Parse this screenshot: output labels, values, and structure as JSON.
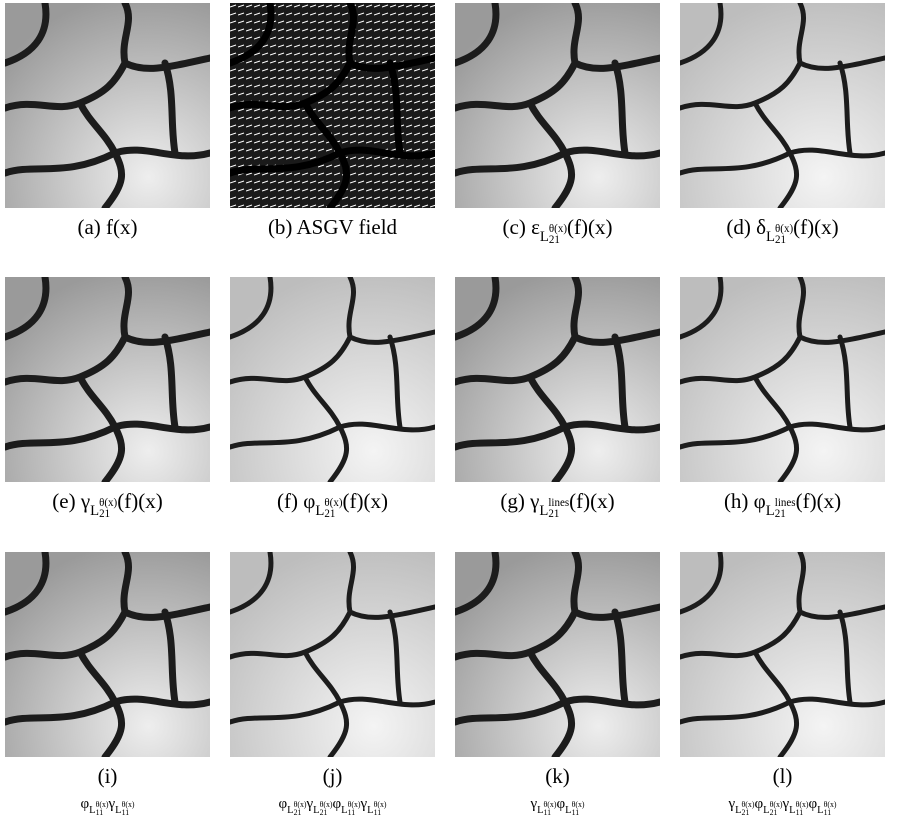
{
  "panels": [
    {
      "caption": [
        {
          "t": "(a) f(x)"
        }
      ]
    },
    {
      "caption": [
        {
          "t": "(b) ASGV field"
        }
      ]
    },
    {
      "caption": [
        {
          "t": "(c) ε"
        },
        {
          "sub": "L",
          "sup2": "θ(x)",
          "sub2": "21"
        },
        {
          "t": "(f)(x)"
        }
      ]
    },
    {
      "caption": [
        {
          "t": "(d) δ"
        },
        {
          "sub": "L",
          "sup2": "θ(x)",
          "sub2": "21"
        },
        {
          "t": "(f)(x)"
        }
      ]
    },
    {
      "caption": [
        {
          "t": "(e) γ"
        },
        {
          "sub": "L",
          "sup2": "θ(x)",
          "sub2": "21"
        },
        {
          "t": "(f)(x)"
        }
      ]
    },
    {
      "caption": [
        {
          "t": "(f) φ"
        },
        {
          "sub": "L",
          "sup2": "θ(x)",
          "sub2": "21"
        },
        {
          "t": "(f)(x)"
        }
      ]
    },
    {
      "caption": [
        {
          "t": "(g) γ"
        },
        {
          "sub": "L",
          "sup2": "lines",
          "sub2": "21"
        },
        {
          "t": "(f)(x)"
        }
      ]
    },
    {
      "caption": [
        {
          "t": "(h) φ"
        },
        {
          "sub": "L",
          "sup2": "lines",
          "sub2": "21"
        },
        {
          "t": "(f)(x)"
        }
      ]
    },
    {
      "caption": [
        {
          "t": "(i)"
        }
      ],
      "formula": [
        {
          "t": "φ"
        },
        {
          "sub": "L",
          "sup2": "θ(x)",
          "sub2": "11"
        },
        {
          "t": "γ"
        },
        {
          "sub": "L",
          "sup2": "θ(x)",
          "sub2": "11"
        }
      ]
    },
    {
      "caption": [
        {
          "t": "(j)"
        }
      ],
      "formula": [
        {
          "t": "φ"
        },
        {
          "sub": "L",
          "sup2": "θ(x)",
          "sub2": "21"
        },
        {
          "t": "γ"
        },
        {
          "sub": "L",
          "sup2": "θ(x)",
          "sub2": "21"
        },
        {
          "t": "φ"
        },
        {
          "sub": "L",
          "sup2": "θ(x)",
          "sub2": "11"
        },
        {
          "t": "γ"
        },
        {
          "sub": "L",
          "sup2": "θ(x)",
          "sub2": "11"
        }
      ]
    },
    {
      "caption": [
        {
          "t": "(k)"
        }
      ],
      "formula": [
        {
          "t": "γ"
        },
        {
          "sub": "L",
          "sup2": "θ(x)",
          "sub2": "11"
        },
        {
          "t": "φ"
        },
        {
          "sub": "L",
          "sup2": "θ(x)",
          "sub2": "11"
        }
      ]
    },
    {
      "caption": [
        {
          "t": "(l)"
        }
      ],
      "formula": [
        {
          "t": "γ"
        },
        {
          "sub": "L",
          "sup2": "θ(x)",
          "sub2": "21"
        },
        {
          "t": "φ"
        },
        {
          "sub": "L",
          "sup2": "θ(x)",
          "sub2": "21"
        },
        {
          "t": "γ"
        },
        {
          "sub": "L",
          "sup2": "θ(x)",
          "sub2": "11"
        },
        {
          "t": "φ"
        },
        {
          "sub": "L",
          "sup2": "θ(x)",
          "sub2": "11"
        }
      ]
    }
  ]
}
